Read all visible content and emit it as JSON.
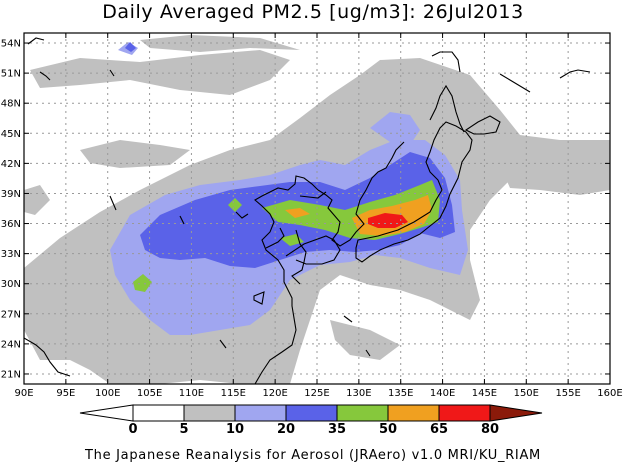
{
  "title": "Daily Averaged PM2.5 [ug/m3]: 26Jul2013",
  "credit": "The Japanese Reanalysis for Aerosol (JRAero) v1.0 MRI/KU_RIAM",
  "map": {
    "lon_range": [
      90,
      160
    ],
    "lat_range": [
      20,
      55
    ],
    "lon_ticks": [
      "90E",
      "95E",
      "100E",
      "105E",
      "110E",
      "115E",
      "120E",
      "125E",
      "130E",
      "135E",
      "140E",
      "145E",
      "150E",
      "155E",
      "160E"
    ],
    "lat_ticks": [
      "21N",
      "24N",
      "27N",
      "30N",
      "33N",
      "36N",
      "39N",
      "42N",
      "45N",
      "48N",
      "51N",
      "54N"
    ],
    "grid": true
  },
  "colorbar": {
    "thresholds": [
      "0",
      "5",
      "10",
      "20",
      "35",
      "50",
      "65",
      "80"
    ],
    "colors": [
      "#ffffff",
      "#ffffff",
      "#c0c0c0",
      "#a0a6f0",
      "#5a62e8",
      "#86c83c",
      "#f0a020",
      "#f01818",
      "#8b1a0a"
    ]
  }
}
